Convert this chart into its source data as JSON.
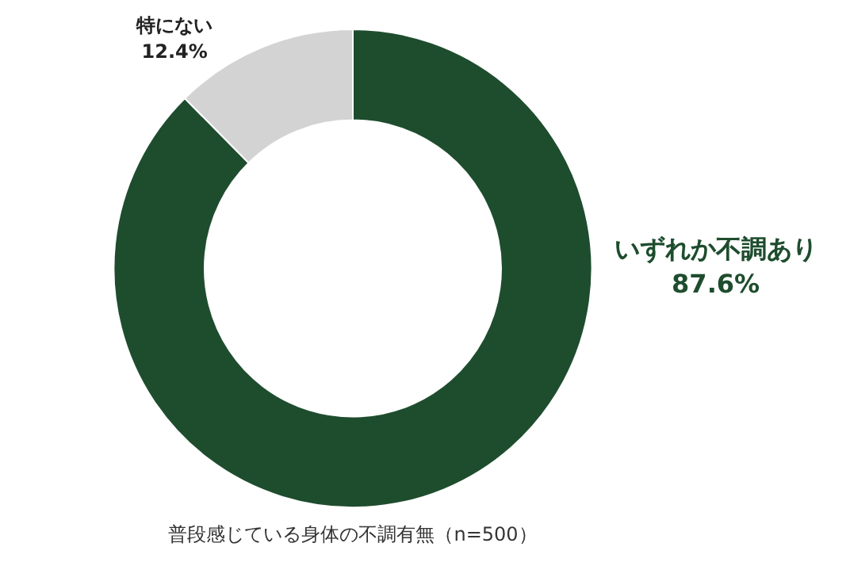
{
  "chart_data": {
    "type": "donut",
    "title": "普段感じている身体の不調有無（n=500）",
    "categories": [
      "いずれか不調あり",
      "特にない"
    ],
    "values": [
      87.6,
      12.4
    ],
    "colors": [
      "#1e4d2e",
      "#d3d3d3"
    ],
    "value_labels": [
      "87.6%",
      "12.4%"
    ],
    "legend": false
  }
}
